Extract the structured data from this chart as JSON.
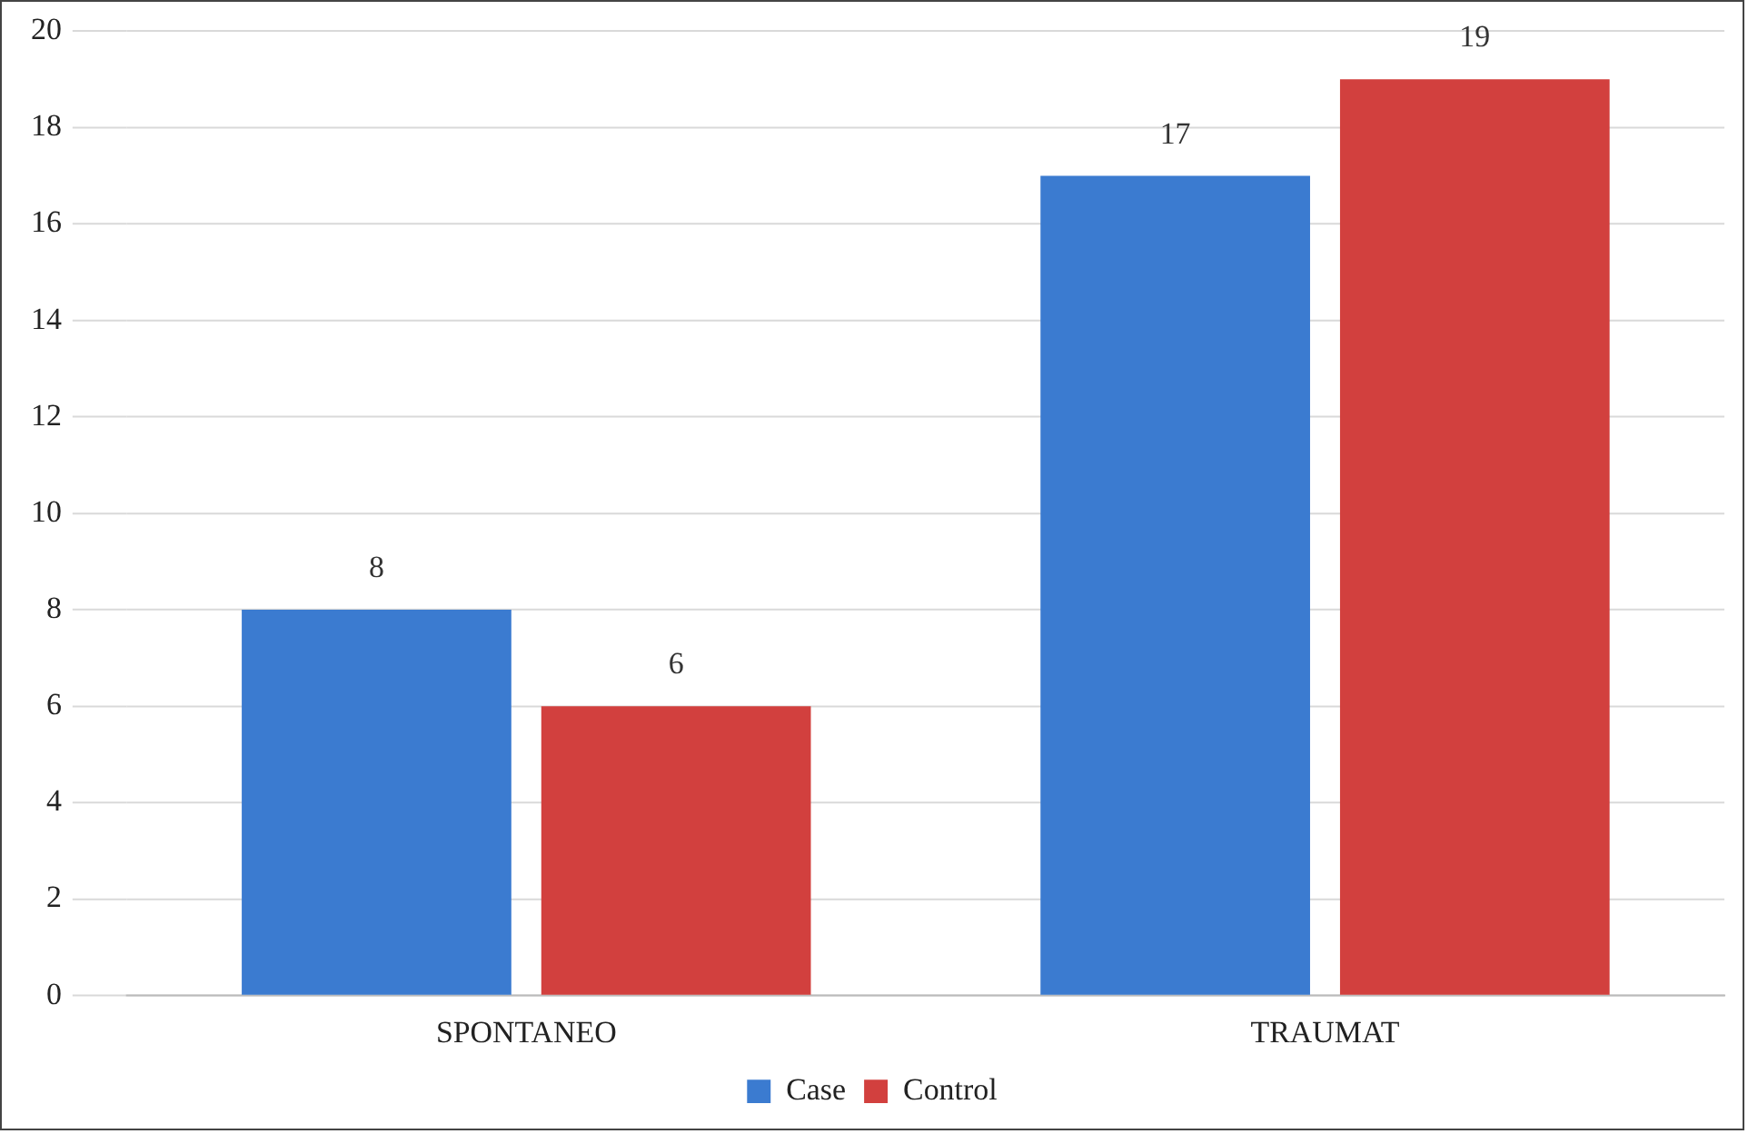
{
  "chart_data": {
    "type": "bar",
    "categories": [
      "SPONTANEO",
      "TRAUMAT"
    ],
    "series": [
      {
        "name": "Case",
        "color": "#3b7bd0",
        "values": [
          8,
          17
        ]
      },
      {
        "name": "Control",
        "color": "#d2403e",
        "values": [
          6,
          19
        ]
      }
    ],
    "ylim": [
      0,
      20
    ],
    "yticks": [
      0,
      2,
      4,
      6,
      8,
      10,
      12,
      14,
      16,
      18,
      20
    ],
    "grid": "y",
    "legend": "bottom",
    "data_labels": true
  }
}
